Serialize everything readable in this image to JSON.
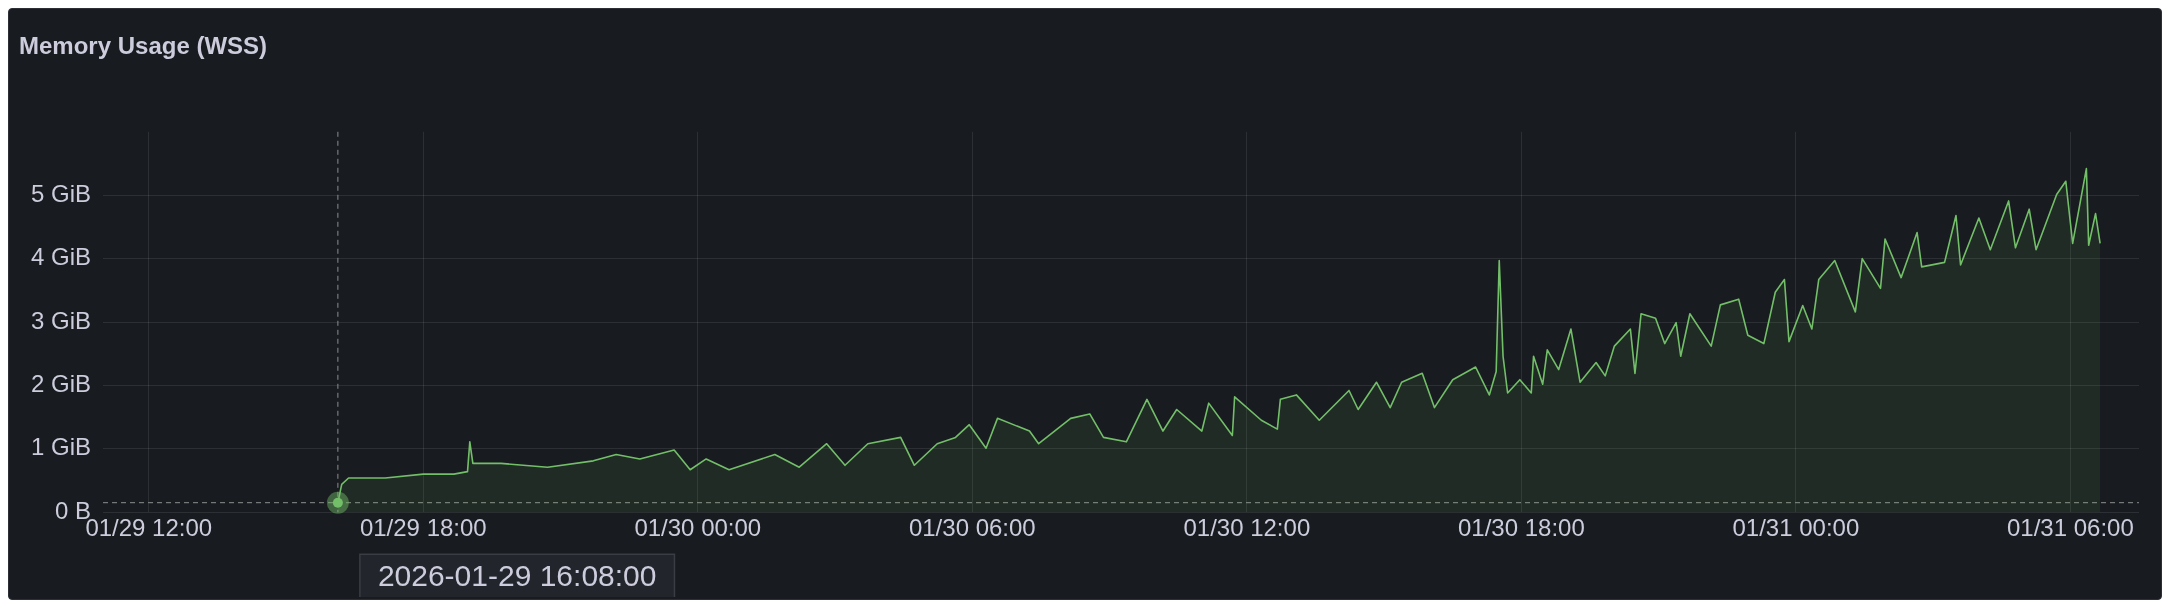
{
  "chart_data": {
    "type": "area",
    "title": "Memory Usage (WSS)",
    "xlim": [
      "2026-01-29T11:00",
      "2026-01-31T07:30"
    ],
    "xticks": [
      {
        "value": "2026-01-29T12:00",
        "label": "01/29 12:00"
      },
      {
        "value": "2026-01-29T18:00",
        "label": "01/29 18:00"
      },
      {
        "value": "2026-01-30T00:00",
        "label": "01/30 00:00"
      },
      {
        "value": "2026-01-30T06:00",
        "label": "01/30 06:00"
      },
      {
        "value": "2026-01-30T12:00",
        "label": "01/30 12:00"
      },
      {
        "value": "2026-01-30T18:00",
        "label": "01/30 18:00"
      },
      {
        "value": "2026-01-31T00:00",
        "label": "01/31 00:00"
      },
      {
        "value": "2026-01-31T06:00",
        "label": "01/31 06:00"
      }
    ],
    "ylim": [
      0,
      6
    ],
    "yticks": [
      {
        "value": 0,
        "label": "0 B"
      },
      {
        "value": 1,
        "label": "1 GiB"
      },
      {
        "value": 2,
        "label": "2 GiB"
      },
      {
        "value": 3,
        "label": "3 GiB"
      },
      {
        "value": 4,
        "label": "4 GiB"
      },
      {
        "value": 5,
        "label": "5 GiB"
      }
    ],
    "grid": true,
    "x": [
      "2026-01-29T16:08",
      "2026-01-29T16:13",
      "2026-01-29T16:22",
      "2026-01-29T17:10",
      "2026-01-29T18:00",
      "2026-01-29T18:40",
      "2026-01-29T18:58",
      "2026-01-29T19:01",
      "2026-01-29T19:05",
      "2026-01-29T19:42",
      "2026-01-29T20:43",
      "2026-01-29T21:43",
      "2026-01-29T22:13",
      "2026-01-29T22:44",
      "2026-01-29T23:29",
      "2026-01-29T23:50",
      "2026-01-30T00:11",
      "2026-01-30T00:41",
      "2026-01-30T01:41",
      "2026-01-30T02:13",
      "2026-01-30T02:49",
      "2026-01-30T03:13",
      "2026-01-30T03:43",
      "2026-01-30T04:26",
      "2026-01-30T04:44",
      "2026-01-30T05:14",
      "2026-01-30T05:38",
      "2026-01-30T05:56",
      "2026-01-30T06:18",
      "2026-01-30T06:33",
      "2026-01-30T07:15",
      "2026-01-30T07:27",
      "2026-01-30T08:09",
      "2026-01-30T08:34",
      "2026-01-30T08:52",
      "2026-01-30T09:22",
      "2026-01-30T09:49",
      "2026-01-30T10:10",
      "2026-01-30T10:28",
      "2026-01-30T11:01",
      "2026-01-30T11:10",
      "2026-01-30T11:41",
      "2026-01-30T11:44",
      "2026-01-30T12:19",
      "2026-01-30T12:40",
      "2026-01-30T12:44",
      "2026-01-30T13:05",
      "2026-01-30T13:35",
      "2026-01-30T14:14",
      "2026-01-30T14:26",
      "2026-01-30T14:50",
      "2026-01-30T15:08",
      "2026-01-30T15:23",
      "2026-01-30T15:50",
      "2026-01-30T16:06",
      "2026-01-30T16:30",
      "2026-01-30T17:00",
      "2026-01-30T17:18",
      "2026-01-30T17:27",
      "2026-01-30T17:31",
      "2026-01-30T17:36",
      "2026-01-30T17:42",
      "2026-01-30T17:58",
      "2026-01-30T18:13",
      "2026-01-30T18:16",
      "2026-01-30T18:28",
      "2026-01-30T18:34",
      "2026-01-30T18:49",
      "2026-01-30T19:05",
      "2026-01-30T19:17",
      "2026-01-30T19:38",
      "2026-01-30T19:50",
      "2026-01-30T20:02",
      "2026-01-30T20:23",
      "2026-01-30T20:29",
      "2026-01-30T20:37",
      "2026-01-30T20:56",
      "2026-01-30T21:08",
      "2026-01-30T21:23",
      "2026-01-30T21:29",
      "2026-01-30T21:41",
      "2026-01-30T22:09",
      "2026-01-30T22:21",
      "2026-01-30T22:45",
      "2026-01-30T22:57",
      "2026-01-30T23:18",
      "2026-01-30T23:33",
      "2026-01-30T23:45",
      "2026-01-30T23:51",
      "2026-01-31T00:09",
      "2026-01-31T00:21",
      "2026-01-31T00:30",
      "2026-01-31T00:51",
      "2026-01-31T01:18",
      "2026-01-31T01:27",
      "2026-01-31T01:51",
      "2026-01-31T01:57",
      "2026-01-31T02:18",
      "2026-01-31T02:39",
      "2026-01-31T02:45",
      "2026-01-31T03:15",
      "2026-01-31T03:30",
      "2026-01-31T03:36",
      "2026-01-31T04:00",
      "2026-01-31T04:15",
      "2026-01-31T04:39",
      "2026-01-31T04:48",
      "2026-01-31T05:06",
      "2026-01-31T05:15",
      "2026-01-31T05:42",
      "2026-01-31T05:54",
      "2026-01-31T06:03",
      "2026-01-31T06:21",
      "2026-01-31T06:24",
      "2026-01-31T06:33",
      "2026-01-31T06:39"
    ],
    "series": [
      {
        "color": "#73bf69",
        "values": [
          0.15,
          0.44,
          0.54,
          0.54,
          0.6,
          0.6,
          0.64,
          1.11,
          0.77,
          0.77,
          0.71,
          0.81,
          0.91,
          0.84,
          0.98,
          0.67,
          0.84,
          0.67,
          0.91,
          0.71,
          1.08,
          0.74,
          1.08,
          1.18,
          0.74,
          1.08,
          1.18,
          1.38,
          1.01,
          1.48,
          1.28,
          1.08,
          1.48,
          1.55,
          1.18,
          1.11,
          1.78,
          1.28,
          1.62,
          1.28,
          1.72,
          1.21,
          1.82,
          1.45,
          1.31,
          1.78,
          1.85,
          1.45,
          1.92,
          1.62,
          2.05,
          1.65,
          2.05,
          2.19,
          1.65,
          2.09,
          2.29,
          1.85,
          2.22,
          3.97,
          2.46,
          1.88,
          2.09,
          1.88,
          2.46,
          2.02,
          2.56,
          2.25,
          2.89,
          2.05,
          2.36,
          2.15,
          2.62,
          2.89,
          2.19,
          3.13,
          3.06,
          2.66,
          2.99,
          2.46,
          3.13,
          2.62,
          3.27,
          3.36,
          2.79,
          2.66,
          3.47,
          3.67,
          2.69,
          3.26,
          2.89,
          3.67,
          3.97,
          3.16,
          4.0,
          3.53,
          4.31,
          3.7,
          4.41,
          3.87,
          3.94,
          4.68,
          3.9,
          4.64,
          4.14,
          4.91,
          4.17,
          4.78,
          4.14,
          5.01,
          5.22,
          4.24,
          5.42,
          4.21,
          4.71,
          4.24
        ]
      }
    ],
    "ref_lines": [
      {
        "axis": "x",
        "value": "2026-01-29T16:08",
        "line_style": "dashed",
        "color": "#8e8e8e"
      },
      {
        "axis": "y",
        "value": 0.15,
        "line_style": "dashed",
        "color": "#8e8e8e"
      }
    ],
    "annotations": [
      {
        "text": "2026-01-29 16:08:00",
        "x": "2026-01-29T16:08",
        "y": 0.15
      }
    ]
  }
}
